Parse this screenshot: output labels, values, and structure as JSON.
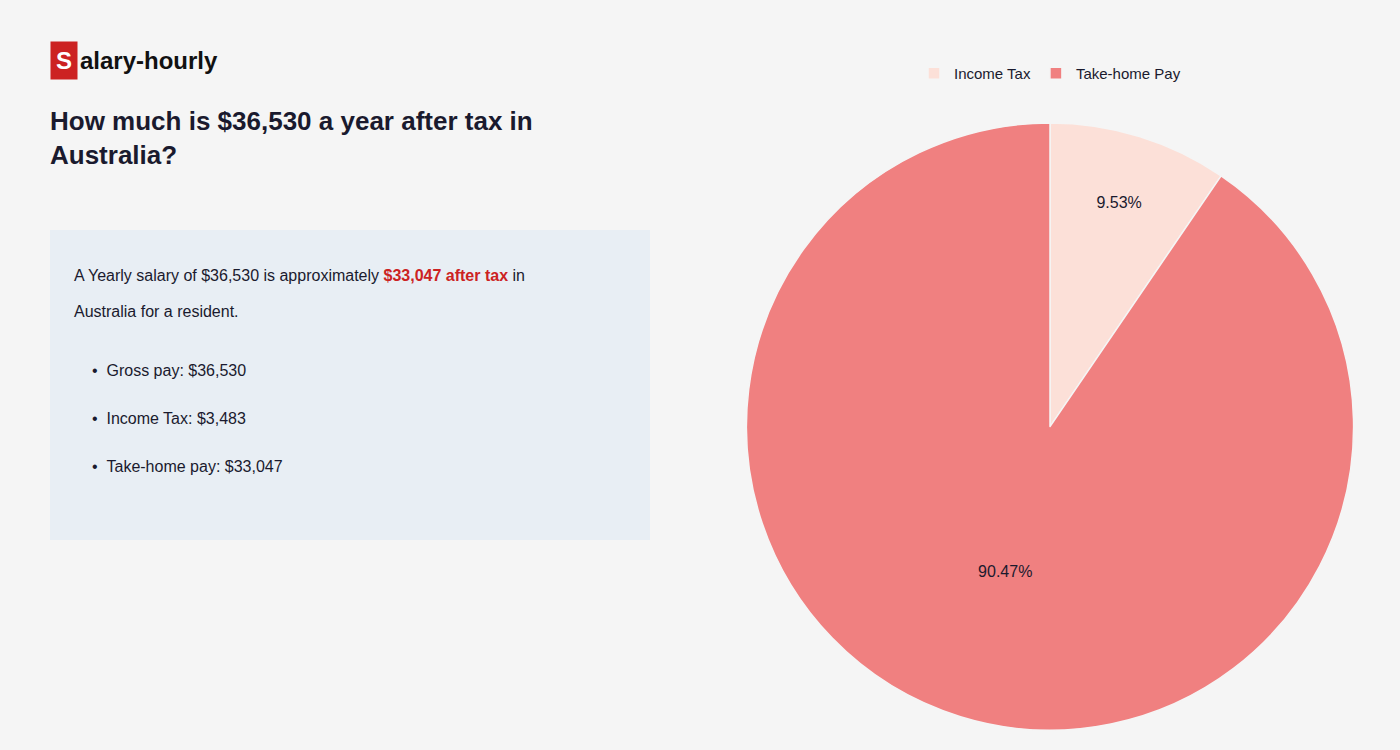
{
  "chart_data": {
    "type": "pie",
    "title": "How much is $36,530 a year after tax in\nAustralia?",
    "categories": [
      "Income Tax",
      "Take-home Pay"
    ],
    "values": [
      9.53,
      90.47
    ],
    "value_labels": [
      "9.53%",
      "90.47%"
    ],
    "data_labels": true,
    "colors": [
      "#fce0d8",
      "#f08080"
    ],
    "legend": "top",
    "annotations": [
      [
        {
          "text": "S",
          "color": "#cc2222"
        },
        {
          "text": "alary-hourly"
        }
      ],
      [
        {
          "text": "A Yearly salary of $36,530 is approximately "
        },
        {
          "text": "$33,047 after tax",
          "color": "#cc2222"
        },
        {
          "text": " in"
        }
      ],
      [
        {
          "text": "Australia for a resident."
        }
      ],
      [
        {
          "text": "•"
        },
        {
          "text": "Gross pay: $36,530"
        }
      ],
      [
        {
          "text": "•"
        },
        {
          "text": "Income Tax: $3,483"
        }
      ],
      [
        {
          "text": "•"
        },
        {
          "text": "Take-home pay: $33,047"
        }
      ]
    ]
  }
}
